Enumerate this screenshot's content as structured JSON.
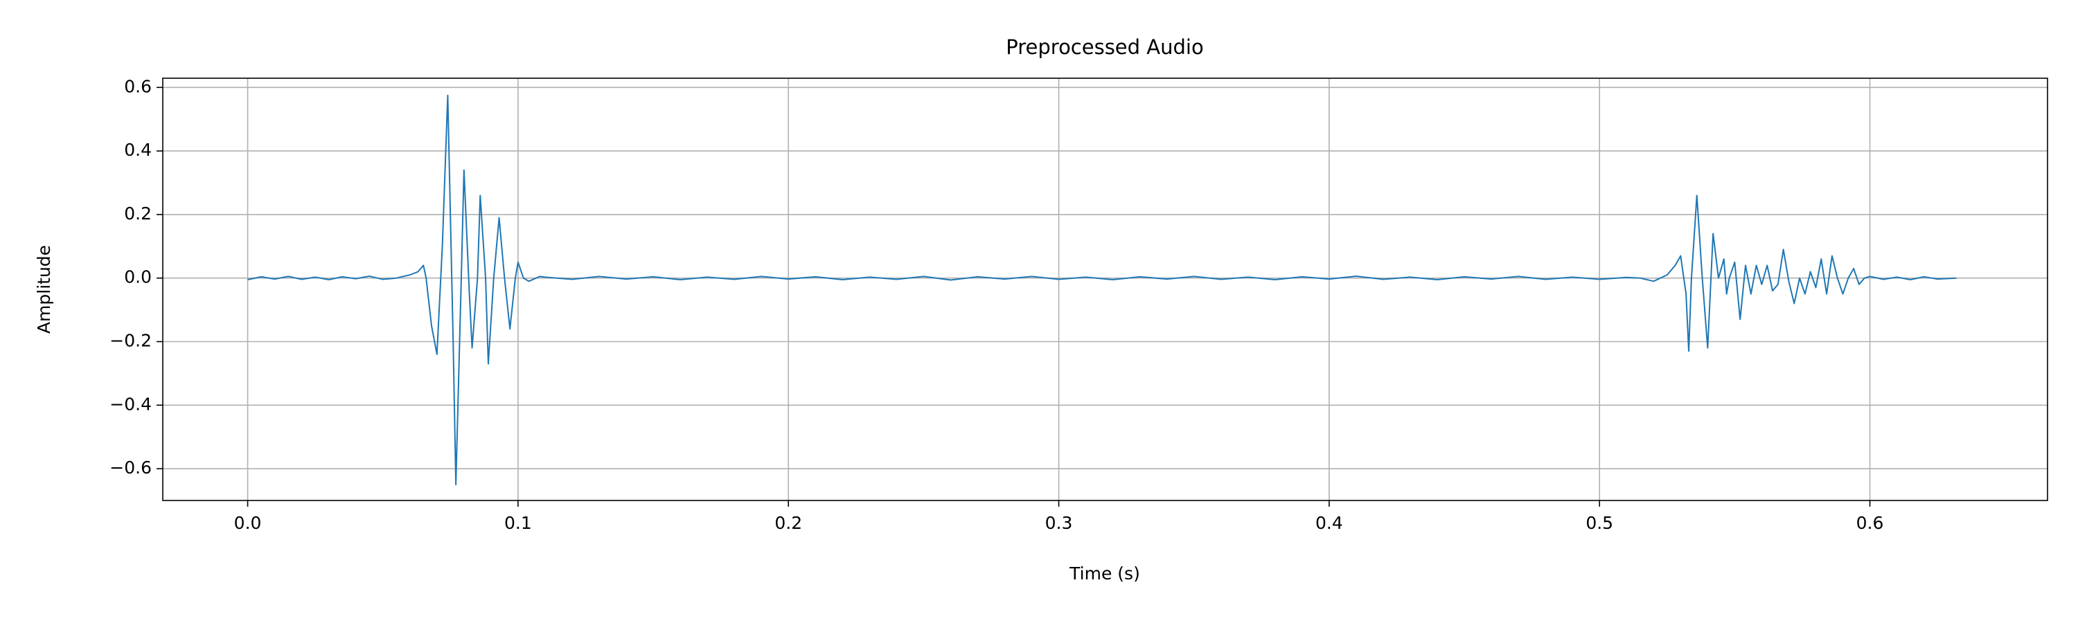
{
  "chart_data": {
    "type": "line",
    "title": "Preprocessed Audio",
    "xlabel": "Time (s)",
    "ylabel": "Amplitude",
    "color": "#1f77b4",
    "grid": true,
    "xlim": [
      -0.0314,
      0.6657
    ],
    "ylim": [
      -0.7,
      0.629
    ],
    "xticks": [
      {
        "value": 0.0,
        "label": "0.0"
      },
      {
        "value": 0.1,
        "label": "0.1"
      },
      {
        "value": 0.2,
        "label": "0.2"
      },
      {
        "value": 0.3,
        "label": "0.3"
      },
      {
        "value": 0.4,
        "label": "0.4"
      },
      {
        "value": 0.5,
        "label": "0.5"
      },
      {
        "value": 0.6,
        "label": "0.6"
      }
    ],
    "yticks": [
      {
        "value": -0.6,
        "label": "−0.6"
      },
      {
        "value": -0.4,
        "label": "−0.4"
      },
      {
        "value": -0.2,
        "label": "−0.2"
      },
      {
        "value": 0.0,
        "label": "0.0"
      },
      {
        "value": 0.2,
        "label": "0.2"
      },
      {
        "value": 0.4,
        "label": "0.4"
      },
      {
        "value": 0.6,
        "label": "0.6"
      }
    ],
    "x": [
      0.0,
      0.005,
      0.01,
      0.015,
      0.02,
      0.025,
      0.03,
      0.035,
      0.04,
      0.045,
      0.05,
      0.055,
      0.06,
      0.063,
      0.065,
      0.066,
      0.068,
      0.07,
      0.072,
      0.074,
      0.076,
      0.077,
      0.079,
      0.08,
      0.082,
      0.083,
      0.085,
      0.086,
      0.088,
      0.089,
      0.091,
      0.093,
      0.095,
      0.097,
      0.099,
      0.1,
      0.102,
      0.104,
      0.108,
      0.11,
      0.12,
      0.13,
      0.14,
      0.15,
      0.16,
      0.17,
      0.18,
      0.19,
      0.2,
      0.21,
      0.22,
      0.23,
      0.24,
      0.25,
      0.26,
      0.27,
      0.28,
      0.29,
      0.3,
      0.31,
      0.32,
      0.33,
      0.34,
      0.35,
      0.36,
      0.37,
      0.38,
      0.39,
      0.4,
      0.41,
      0.42,
      0.43,
      0.44,
      0.45,
      0.46,
      0.47,
      0.48,
      0.49,
      0.5,
      0.51,
      0.515,
      0.52,
      0.525,
      0.528,
      0.53,
      0.532,
      0.533,
      0.534,
      0.536,
      0.538,
      0.54,
      0.542,
      0.544,
      0.546,
      0.547,
      0.548,
      0.55,
      0.552,
      0.554,
      0.556,
      0.558,
      0.56,
      0.562,
      0.564,
      0.566,
      0.568,
      0.57,
      0.572,
      0.574,
      0.576,
      0.578,
      0.58,
      0.582,
      0.584,
      0.586,
      0.588,
      0.59,
      0.592,
      0.594,
      0.596,
      0.598,
      0.6,
      0.605,
      0.61,
      0.615,
      0.62,
      0.625,
      0.632
    ],
    "values": [
      -0.005,
      0.004,
      -0.003,
      0.005,
      -0.004,
      0.003,
      -0.005,
      0.004,
      -0.002,
      0.006,
      -0.004,
      0.0,
      0.01,
      0.02,
      0.04,
      0.0,
      -0.15,
      -0.24,
      0.1,
      0.575,
      -0.2,
      -0.65,
      0.0,
      0.34,
      -0.05,
      -0.22,
      0.0,
      0.26,
      0.0,
      -0.27,
      0.0,
      0.19,
      0.0,
      -0.16,
      0.0,
      0.05,
      0.0,
      -0.01,
      0.005,
      0.003,
      -0.004,
      0.005,
      -0.003,
      0.004,
      -0.005,
      0.003,
      -0.004,
      0.005,
      -0.003,
      0.004,
      -0.005,
      0.003,
      -0.004,
      0.005,
      -0.006,
      0.004,
      -0.003,
      0.005,
      -0.004,
      0.003,
      -0.005,
      0.004,
      -0.003,
      0.005,
      -0.004,
      0.003,
      -0.005,
      0.004,
      -0.003,
      0.006,
      -0.004,
      0.003,
      -0.005,
      0.004,
      -0.003,
      0.005,
      -0.004,
      0.003,
      -0.004,
      0.002,
      0.0,
      -0.01,
      0.01,
      0.04,
      0.07,
      -0.05,
      -0.23,
      0.0,
      0.26,
      0.0,
      -0.22,
      0.14,
      0.0,
      0.06,
      -0.05,
      0.0,
      0.05,
      -0.13,
      0.04,
      -0.05,
      0.04,
      -0.02,
      0.04,
      -0.04,
      -0.02,
      0.09,
      -0.01,
      -0.08,
      0.0,
      -0.05,
      0.02,
      -0.03,
      0.06,
      -0.05,
      0.07,
      0.0,
      -0.05,
      0.0,
      0.03,
      -0.02,
      0.0,
      0.005,
      -0.004,
      0.003,
      -0.005,
      0.004,
      -0.003,
      0.0
    ]
  }
}
